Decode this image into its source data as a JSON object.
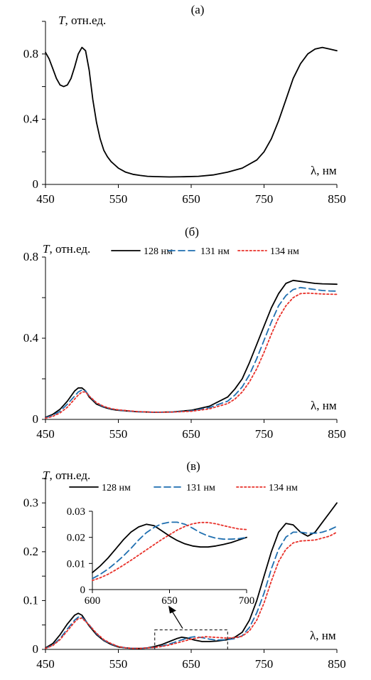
{
  "chart_data": [
    {
      "panel_label": "(а)",
      "type": "line",
      "ylabel_italic": "T",
      "ylabel_rest": ", отн.ед.",
      "xlabel": "λ, нм",
      "xlim": [
        450,
        850
      ],
      "ylim": [
        0,
        1.0
      ],
      "xticks": [
        "450",
        "550",
        "650",
        "750",
        "850"
      ],
      "yticks": [
        "0",
        "0.4",
        "0.8"
      ],
      "ytick_values": [
        0,
        0.4,
        0.8
      ],
      "series": [
        {
          "color": "#000000",
          "dash": "solid",
          "x": [
            450,
            455,
            460,
            465,
            470,
            475,
            480,
            485,
            490,
            495,
            500,
            505,
            510,
            515,
            520,
            525,
            530,
            535,
            540,
            545,
            550,
            560,
            570,
            580,
            590,
            600,
            620,
            640,
            660,
            680,
            700,
            720,
            740,
            750,
            760,
            770,
            780,
            790,
            800,
            810,
            820,
            830,
            840,
            850
          ],
          "y": [
            0.81,
            0.77,
            0.71,
            0.65,
            0.61,
            0.6,
            0.61,
            0.65,
            0.72,
            0.8,
            0.84,
            0.82,
            0.7,
            0.52,
            0.38,
            0.28,
            0.21,
            0.17,
            0.14,
            0.12,
            0.1,
            0.075,
            0.062,
            0.055,
            0.05,
            0.048,
            0.046,
            0.047,
            0.05,
            0.058,
            0.075,
            0.1,
            0.15,
            0.2,
            0.28,
            0.39,
            0.52,
            0.65,
            0.74,
            0.8,
            0.83,
            0.84,
            0.83,
            0.82
          ]
        }
      ]
    },
    {
      "panel_label": "(б)",
      "type": "line",
      "ylabel_italic": "T",
      "ylabel_rest": ", отн.ед.",
      "xlabel": "λ, нм",
      "xlim": [
        450,
        850
      ],
      "ylim": [
        0,
        0.8
      ],
      "xticks": [
        "450",
        "550",
        "650",
        "750",
        "850"
      ],
      "yticks": [
        "0",
        "0.4",
        "0.8"
      ],
      "ytick_values": [
        0,
        0.4,
        0.8
      ],
      "legend_position": "top",
      "series": [
        {
          "name": "128 нм",
          "color": "#000000",
          "dash": "solid",
          "x": [
            450,
            460,
            470,
            480,
            490,
            495,
            500,
            505,
            510,
            520,
            530,
            540,
            550,
            575,
            600,
            625,
            650,
            675,
            700,
            710,
            720,
            730,
            740,
            750,
            760,
            770,
            780,
            790,
            800,
            810,
            820,
            830,
            840,
            850
          ],
          "y": [
            0.01,
            0.025,
            0.05,
            0.09,
            0.14,
            0.155,
            0.155,
            0.14,
            0.11,
            0.075,
            0.06,
            0.05,
            0.045,
            0.038,
            0.035,
            0.037,
            0.045,
            0.065,
            0.11,
            0.15,
            0.2,
            0.28,
            0.37,
            0.46,
            0.55,
            0.62,
            0.67,
            0.685,
            0.68,
            0.675,
            0.67,
            0.668,
            0.667,
            0.666
          ]
        },
        {
          "name": "131 нм",
          "color": "#1f6fb0",
          "dash": "dash",
          "x": [
            450,
            460,
            470,
            480,
            490,
            495,
            500,
            505,
            510,
            520,
            530,
            540,
            550,
            575,
            600,
            625,
            650,
            675,
            700,
            710,
            720,
            730,
            740,
            750,
            760,
            770,
            780,
            790,
            800,
            810,
            820,
            830,
            840,
            850
          ],
          "y": [
            0.008,
            0.02,
            0.04,
            0.075,
            0.115,
            0.135,
            0.145,
            0.14,
            0.115,
            0.08,
            0.062,
            0.052,
            0.046,
            0.038,
            0.035,
            0.036,
            0.042,
            0.058,
            0.09,
            0.12,
            0.16,
            0.22,
            0.3,
            0.39,
            0.48,
            0.56,
            0.61,
            0.64,
            0.65,
            0.645,
            0.64,
            0.635,
            0.633,
            0.632
          ]
        },
        {
          "name": "134 нм",
          "color": "#e8312a",
          "dash": "dot",
          "x": [
            450,
            460,
            470,
            480,
            490,
            495,
            500,
            505,
            510,
            520,
            530,
            540,
            550,
            575,
            600,
            625,
            650,
            675,
            700,
            710,
            720,
            730,
            740,
            750,
            760,
            770,
            780,
            790,
            800,
            810,
            820,
            830,
            840,
            850
          ],
          "y": [
            0.006,
            0.015,
            0.032,
            0.06,
            0.1,
            0.12,
            0.135,
            0.135,
            0.115,
            0.082,
            0.064,
            0.053,
            0.047,
            0.039,
            0.035,
            0.036,
            0.04,
            0.052,
            0.078,
            0.1,
            0.135,
            0.185,
            0.25,
            0.33,
            0.42,
            0.5,
            0.56,
            0.6,
            0.62,
            0.622,
            0.62,
            0.618,
            0.617,
            0.616
          ]
        }
      ]
    },
    {
      "panel_label": "(в)",
      "type": "line",
      "ylabel_italic": "T",
      "ylabel_rest": ", отн.ед.",
      "xlabel": "λ, нм",
      "xlim": [
        450,
        850
      ],
      "ylim": [
        0,
        0.35
      ],
      "xticks": [
        "450",
        "550",
        "650",
        "750",
        "850"
      ],
      "yticks": [
        "0",
        "0.1",
        "0.2",
        "0.3"
      ],
      "ytick_values": [
        0,
        0.1,
        0.2,
        0.3
      ],
      "legend_position": "top",
      "series": [
        {
          "name": "128 нм",
          "color": "#000000",
          "dash": "solid",
          "x": [
            450,
            460,
            470,
            480,
            490,
            495,
            500,
            510,
            520,
            530,
            540,
            550,
            560,
            570,
            580,
            590,
            600,
            610,
            620,
            630,
            637,
            645,
            655,
            665,
            675,
            685,
            700,
            710,
            720,
            730,
            740,
            750,
            760,
            770,
            780,
            790,
            800,
            810,
            820,
            830,
            840,
            850
          ],
          "y": [
            0.003,
            0.012,
            0.03,
            0.052,
            0.07,
            0.074,
            0.07,
            0.048,
            0.03,
            0.018,
            0.01,
            0.005,
            0.003,
            0.002,
            0.002,
            0.003,
            0.006,
            0.01,
            0.016,
            0.022,
            0.025,
            0.023,
            0.019,
            0.016,
            0.016,
            0.017,
            0.02,
            0.025,
            0.035,
            0.06,
            0.1,
            0.15,
            0.2,
            0.24,
            0.258,
            0.255,
            0.24,
            0.232,
            0.24,
            0.26,
            0.28,
            0.3
          ]
        },
        {
          "name": "131 нм",
          "color": "#1f6fb0",
          "dash": "dash",
          "x": [
            450,
            460,
            470,
            480,
            490,
            495,
            500,
            510,
            520,
            530,
            540,
            550,
            560,
            570,
            580,
            590,
            600,
            610,
            620,
            630,
            640,
            650,
            655,
            665,
            675,
            685,
            700,
            710,
            720,
            730,
            740,
            750,
            760,
            770,
            780,
            790,
            800,
            810,
            820,
            830,
            840,
            850
          ],
          "y": [
            0.002,
            0.009,
            0.022,
            0.042,
            0.06,
            0.066,
            0.066,
            0.05,
            0.032,
            0.019,
            0.011,
            0.006,
            0.003,
            0.002,
            0.002,
            0.003,
            0.004,
            0.007,
            0.011,
            0.016,
            0.021,
            0.025,
            0.026,
            0.024,
            0.021,
            0.019,
            0.02,
            0.022,
            0.028,
            0.045,
            0.075,
            0.115,
            0.165,
            0.205,
            0.23,
            0.24,
            0.24,
            0.238,
            0.238,
            0.24,
            0.245,
            0.252
          ]
        },
        {
          "name": "134 нм",
          "color": "#e8312a",
          "dash": "dot",
          "x": [
            450,
            460,
            470,
            480,
            490,
            495,
            500,
            510,
            520,
            530,
            540,
            550,
            560,
            570,
            580,
            590,
            600,
            610,
            620,
            630,
            640,
            650,
            660,
            670,
            680,
            690,
            700,
            710,
            720,
            730,
            740,
            750,
            760,
            770,
            780,
            790,
            800,
            810,
            820,
            830,
            840,
            850
          ],
          "y": [
            0.002,
            0.008,
            0.02,
            0.038,
            0.056,
            0.063,
            0.064,
            0.05,
            0.033,
            0.02,
            0.012,
            0.006,
            0.003,
            0.002,
            0.002,
            0.003,
            0.004,
            0.006,
            0.009,
            0.013,
            0.017,
            0.021,
            0.024,
            0.026,
            0.025,
            0.024,
            0.023,
            0.024,
            0.027,
            0.038,
            0.06,
            0.095,
            0.14,
            0.18,
            0.205,
            0.218,
            0.222,
            0.223,
            0.224,
            0.228,
            0.232,
            0.24
          ]
        }
      ]
    },
    {
      "panel_label": "",
      "type": "line",
      "role": "inset",
      "xlim": [
        600,
        700
      ],
      "ylim": [
        0,
        0.03
      ],
      "xticks": [
        "600",
        "650",
        "700"
      ],
      "yticks": [
        "0",
        "0.01",
        "0.02",
        "0.03"
      ],
      "ytick_values": [
        0,
        0.01,
        0.02,
        0.03
      ],
      "series": [
        {
          "name": "128 нм",
          "color": "#000000",
          "dash": "solid",
          "x": [
            600,
            605,
            610,
            615,
            620,
            625,
            630,
            635,
            640,
            645,
            650,
            655,
            660,
            665,
            670,
            675,
            680,
            685,
            690,
            695,
            700
          ],
          "y": [
            0.0065,
            0.009,
            0.012,
            0.0155,
            0.019,
            0.022,
            0.024,
            0.025,
            0.0245,
            0.0225,
            0.0205,
            0.0188,
            0.0175,
            0.0167,
            0.0163,
            0.0163,
            0.0167,
            0.0173,
            0.018,
            0.019,
            0.02
          ]
        },
        {
          "name": "131 нм",
          "color": "#1f6fb0",
          "dash": "dash",
          "x": [
            600,
            605,
            610,
            615,
            620,
            625,
            630,
            635,
            640,
            645,
            650,
            655,
            660,
            665,
            670,
            675,
            680,
            685,
            690,
            695,
            700
          ],
          "y": [
            0.0042,
            0.0058,
            0.0078,
            0.0102,
            0.0128,
            0.0158,
            0.019,
            0.0218,
            0.0238,
            0.0252,
            0.0258,
            0.0258,
            0.025,
            0.0235,
            0.0218,
            0.0205,
            0.0197,
            0.0193,
            0.0193,
            0.0195,
            0.02
          ]
        },
        {
          "name": "134 нм",
          "color": "#e8312a",
          "dash": "dot",
          "x": [
            600,
            605,
            610,
            615,
            620,
            625,
            630,
            635,
            640,
            645,
            650,
            655,
            660,
            665,
            670,
            675,
            680,
            685,
            690,
            695,
            700
          ],
          "y": [
            0.0035,
            0.0045,
            0.0058,
            0.0075,
            0.0093,
            0.0112,
            0.0132,
            0.0152,
            0.0172,
            0.0192,
            0.021,
            0.0228,
            0.0242,
            0.0252,
            0.0257,
            0.0257,
            0.0252,
            0.0245,
            0.0238,
            0.0232,
            0.023
          ]
        }
      ]
    }
  ]
}
